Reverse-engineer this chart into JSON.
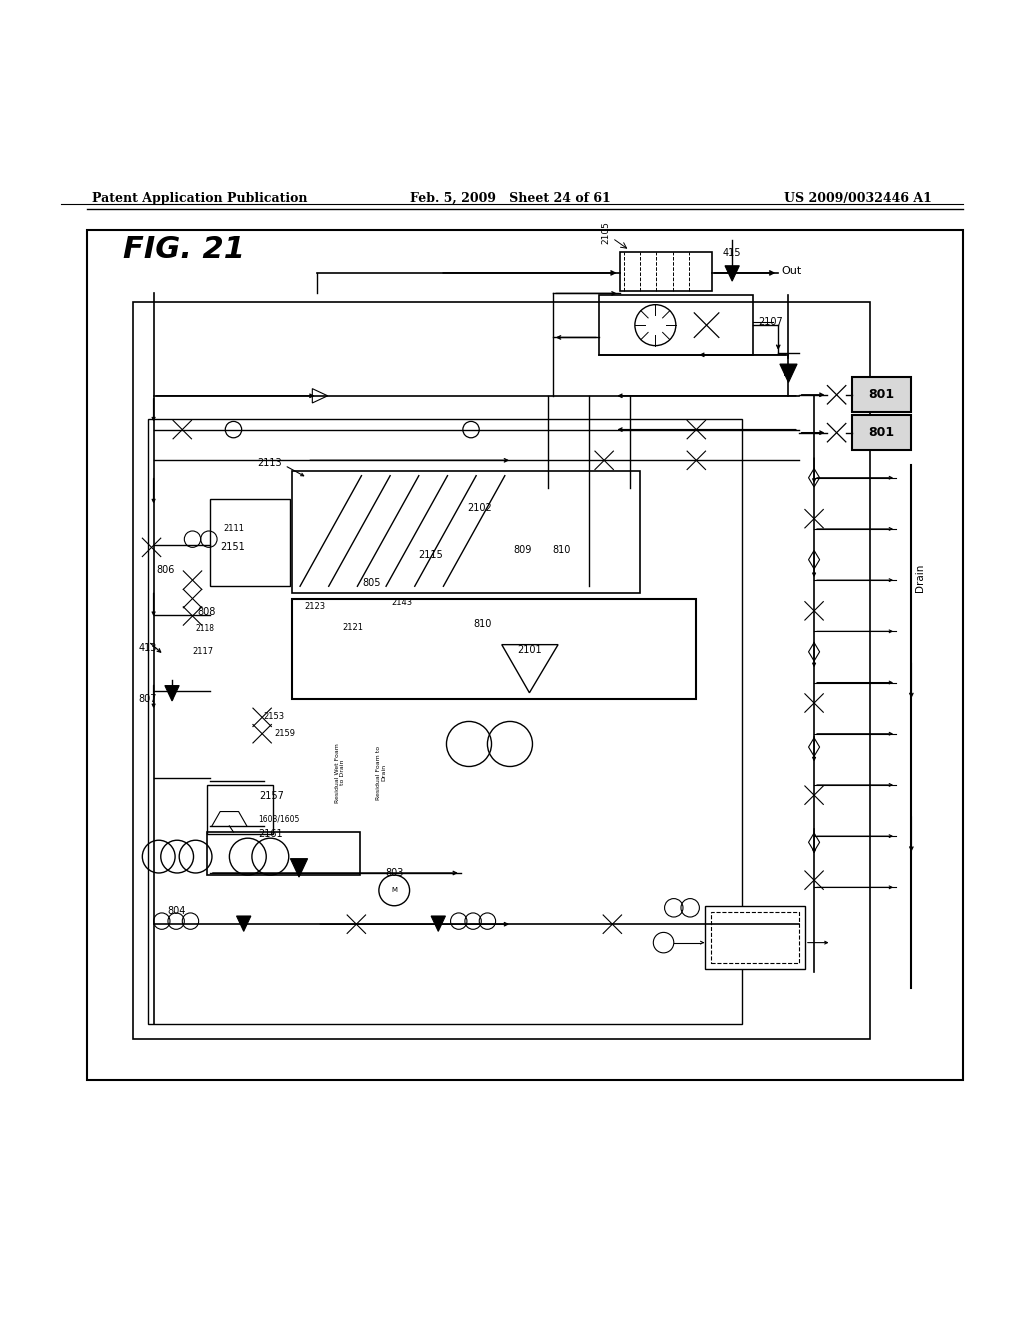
{
  "background_color": "#ffffff",
  "page_header": {
    "left": "Patent Application Publication",
    "center": "Feb. 5, 2009",
    "center2": "Sheet 24 of 61",
    "right": "US 2009/0032446 A1"
  },
  "figure_label": "FIG. 21"
}
